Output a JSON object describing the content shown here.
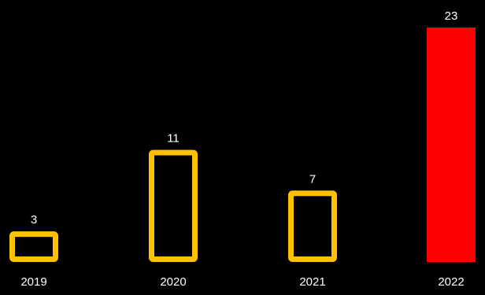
{
  "chart_data": {
    "type": "bar",
    "categories": [
      "2019",
      "2020",
      "2021",
      "2022"
    ],
    "values": [
      3,
      11,
      7,
      23
    ],
    "highlight_index": 3,
    "colors": {
      "background": "#000000",
      "outline": "#FFC000",
      "highlight": "#FF0000",
      "text": "#FFFFFF"
    },
    "ylim": [
      0,
      23
    ]
  }
}
